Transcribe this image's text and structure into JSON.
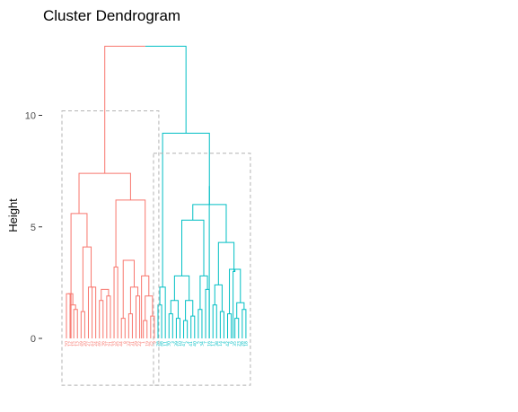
{
  "chart_data": {
    "type": "dendrogram",
    "title": "Cluster Dendrogram",
    "xlabel": "",
    "ylabel": "Height",
    "ylim": [
      -2.1,
      13.5
    ],
    "yticks": [
      0,
      5,
      10
    ],
    "grid": false,
    "leaf_count": 50,
    "cluster_box_style": "dashed",
    "clusters": [
      {
        "color": "#F8766D",
        "leaves": [
          "50",
          "12",
          "15",
          "13",
          "49",
          "20",
          "27",
          "43",
          "24",
          "46",
          "36",
          "37",
          "21",
          "33",
          "45",
          "44",
          "8",
          "32",
          "31",
          "29",
          "22",
          "1",
          "19",
          "25",
          "9"
        ],
        "rect_height": 10.2,
        "merges": [
          [
            1,
            2,
            2.0
          ],
          [
            3,
            4,
            1.3
          ],
          [
            2,
            3.5,
            1.5
          ],
          [
            1.5,
            2.75,
            2.0
          ],
          [
            5,
            6,
            1.2
          ],
          [
            8,
            9,
            2.3
          ],
          [
            7,
            8.5,
            2.3
          ],
          [
            5.5,
            7.75,
            4.1
          ],
          [
            2.25,
            6.625,
            5.6
          ],
          [
            10,
            11,
            1.7
          ],
          [
            12,
            13,
            1.9
          ],
          [
            10.5,
            12.5,
            2.2
          ],
          [
            14,
            15,
            3.2
          ],
          [
            16,
            17,
            0.9
          ],
          [
            18,
            19,
            1.1
          ],
          [
            20,
            21,
            1.9
          ],
          [
            18.5,
            20.5,
            2.3
          ],
          [
            22,
            23,
            0.8
          ],
          [
            24,
            25,
            1.0
          ],
          [
            22.5,
            24.5,
            1.9
          ],
          [
            16.5,
            19.5,
            3.5
          ],
          [
            21.5,
            23.5,
            2.8
          ],
          [
            14.5,
            22.5,
            6.2
          ],
          [
            4.4375,
            18.5,
            7.4
          ]
        ]
      },
      {
        "color": "#00BFC4",
        "leaves": [
          "26",
          "48",
          "11",
          "30",
          "3",
          "39",
          "10",
          "47",
          "2",
          "41",
          "40",
          "5",
          "34",
          "7",
          "16",
          "17",
          "38",
          "14",
          "4",
          "42",
          "6",
          "35",
          "23",
          "28",
          "18"
        ],
        "rect_height": 8.3,
        "merges": [
          [
            1,
            2,
            1.5
          ],
          [
            1.5,
            3,
            2.3
          ],
          [
            4,
            5,
            1.1
          ],
          [
            6,
            7,
            0.9
          ],
          [
            4.5,
            6.5,
            1.7
          ],
          [
            8,
            9,
            0.8
          ],
          [
            10,
            11,
            1.0
          ],
          [
            8.5,
            10.5,
            1.7
          ],
          [
            5.5,
            9.5,
            2.8
          ],
          [
            12,
            13,
            1.3
          ],
          [
            14,
            15,
            2.2
          ],
          [
            12.5,
            14.5,
            2.8
          ],
          [
            7.5,
            13.5,
            5.3
          ],
          [
            16,
            17,
            1.5
          ],
          [
            18,
            19,
            1.2
          ],
          [
            16.5,
            18.5,
            2.4
          ],
          [
            20,
            21,
            1.1
          ],
          [
            22,
            23,
            0.9
          ],
          [
            24,
            25,
            1.3
          ],
          [
            22.5,
            24.5,
            1.6
          ],
          [
            20.5,
            23.5,
            3.1
          ],
          [
            21.5,
            22,
            3.0
          ],
          [
            17.5,
            21.75,
            4.3
          ],
          [
            10.5,
            19.625,
            6.0
          ],
          [
            15,
            15.0625,
            6.8
          ],
          [
            2.25,
            15.03125,
            9.2
          ]
        ]
      }
    ],
    "root_height": 13.1
  }
}
